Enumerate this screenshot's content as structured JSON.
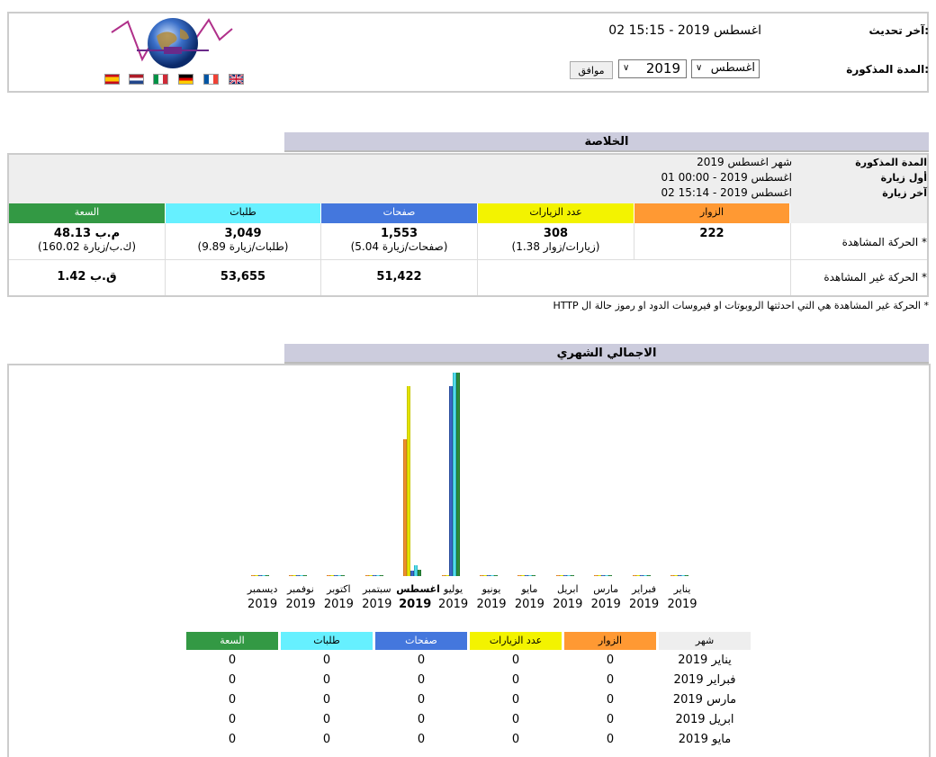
{
  "header": {
    "last_update_label": "آخر تحديث:",
    "last_update_value": "02 اغسطس 2019 - 15:15",
    "period_label": "المدة المذكورة:",
    "month_select": "اغسطس",
    "year_select": "2019",
    "ok_button": "موافق",
    "flags": [
      "uk",
      "france",
      "germany",
      "italy",
      "netherlands",
      "spain"
    ]
  },
  "summary": {
    "title": "الخلاصة",
    "period_label": "المدة المذكورة",
    "period_value": "شهر اغسطس 2019",
    "first_visit_label": "أول زيارة",
    "first_visit_value": "01 اغسطس 2019 - 00:00",
    "last_visit_label": "آخر زيارة",
    "last_visit_value": "02 اغسطس 2019 - 15:14",
    "columns": [
      "الزوار",
      "عدد الزيارات",
      "صفحات",
      "طلبات",
      "السعة"
    ],
    "viewed_label": "الحركة المشاهدة *",
    "viewed": {
      "visitors": "222",
      "visits": "308",
      "visits_sub": "(1.38 زيارات/زوار)",
      "pages": "1,553",
      "pages_sub": "(5.04 صفحات/زيارة)",
      "hits": "3,049",
      "hits_sub": "(9.89 طلبات/زيارة)",
      "bandwidth": "48.13 م.ب",
      "bandwidth_sub": "(160.02 ك.ب/زيارة)"
    },
    "not_viewed_label": "الحركة غير المشاهدة *",
    "not_viewed": {
      "pages": "51,422",
      "hits": "53,655",
      "bandwidth": "1.42 ق.ب"
    },
    "footnote": "* الحركة غير المشاهدة هي التي احدثتها الروبوتات او فيروسات الدود او رموز حالة ال HTTP"
  },
  "monthly": {
    "title": "الاجمالي الشهري",
    "current_month_index": 7,
    "colors": {
      "visitors": "#ff9933",
      "visits": "#f3f300",
      "pages": "#4477dd",
      "hits": "#66f0ff",
      "bandwidth": "#339944"
    },
    "table_headers": [
      "شهر",
      "الزوار",
      "عدد الزيارات",
      "صفحات",
      "طلبات",
      "السعة"
    ],
    "rows": [
      {
        "month": "يناير 2019",
        "visitors": "0",
        "visits": "0",
        "pages": "0",
        "hits": "0",
        "bandwidth": "0"
      },
      {
        "month": "فبراير 2019",
        "visitors": "0",
        "visits": "0",
        "pages": "0",
        "hits": "0",
        "bandwidth": "0"
      },
      {
        "month": "مارس 2019",
        "visitors": "0",
        "visits": "0",
        "pages": "0",
        "hits": "0",
        "bandwidth": "0"
      },
      {
        "month": "ابريل 2019",
        "visitors": "0",
        "visits": "0",
        "pages": "0",
        "hits": "0",
        "bandwidth": "0"
      },
      {
        "month": "مايو 2019",
        "visitors": "0",
        "visits": "0",
        "pages": "0",
        "hits": "0",
        "bandwidth": "0"
      }
    ]
  },
  "chart_data": {
    "type": "bar",
    "categories": [
      "يناير 2019",
      "فبراير 2019",
      "مارس 2019",
      "ابريل 2019",
      "مايو 2019",
      "يونيو 2019",
      "يوليو 2019",
      "اغسطس 2019",
      "سبتمبر 2019",
      "اكتوبر 2019",
      "نوفمبر 2019",
      "ديسمبر 2019"
    ],
    "series": [
      {
        "name": "الزوار",
        "values": [
          0,
          0,
          0,
          0,
          0,
          0,
          0,
          222,
          0,
          0,
          0,
          0
        ]
      },
      {
        "name": "عدد الزيارات",
        "values": [
          0,
          0,
          0,
          0,
          0,
          0,
          0,
          308,
          0,
          0,
          0,
          0
        ]
      },
      {
        "name": "صفحات",
        "values": [
          0,
          0,
          0,
          0,
          0,
          0,
          52975,
          1553,
          0,
          0,
          0,
          0
        ]
      },
      {
        "name": "طلبات",
        "values": [
          0,
          0,
          0,
          0,
          0,
          0,
          56704,
          3049,
          0,
          0,
          0,
          0
        ]
      },
      {
        "name": "السعة",
        "values": [
          0,
          0,
          0,
          0,
          0,
          0,
          1.47,
          0.047,
          0,
          0,
          0,
          0
        ]
      }
    ],
    "grid": false,
    "legend": "none"
  }
}
